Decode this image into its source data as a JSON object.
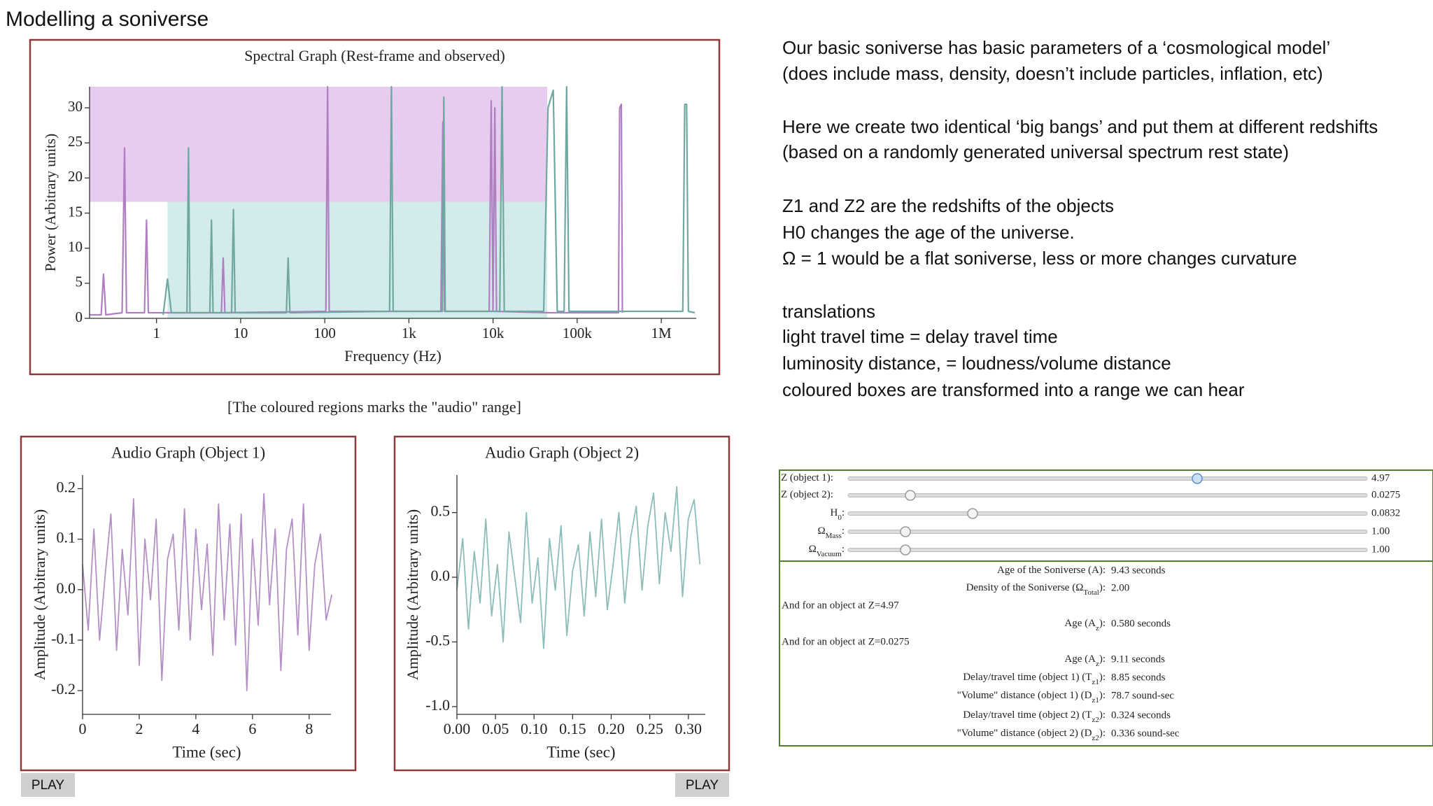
{
  "title": "Modelling a soniverse",
  "description": [
    "Our basic soniverse has basic parameters of a ‘cosmological model’",
    "(does include mass, density, doesn’t include particles, inflation, etc)",
    "Here we create two identical ‘big bangs’ and put them at different redshifts",
    "(based on a randomly generated universal spectrum rest state)",
    "Z1 and Z2 are the redshifts of the objects",
    "H0 changes the age of the universe.",
    "Ω = 1 would be a flat soniverse, less or more changes curvature",
    "translations",
    "light travel time = delay travel time",
    "luminosity distance, =  loudness/volume distance",
    "coloured boxes are transformed into a range we can hear"
  ],
  "spectral_chart": {
    "type": "line",
    "title": "Spectral Graph (Rest-frame and observed)",
    "x_label": "Frequency (Hz)",
    "y_label": "Power (Arbitrary units)",
    "xscale": "log",
    "xlim": [
      0.16,
      2600000
    ],
    "ylim": [
      0,
      33
    ],
    "xticks": [
      1,
      10,
      100,
      {
        "value": 1000,
        "label": "1k"
      },
      {
        "value": 10000,
        "label": "10k"
      },
      {
        "value": 100000,
        "label": "100k"
      },
      {
        "value": 1000000,
        "label": "1M"
      }
    ],
    "yticks": [
      0,
      5,
      10,
      15,
      20,
      25,
      30
    ],
    "regions": [
      {
        "color": "#e6cdef",
        "xlim": [
          0.16,
          44000
        ],
        "ylim": [
          16.6,
          33
        ]
      },
      {
        "color": "#d3ebea",
        "xlim": [
          1.35,
          44000
        ],
        "ylim": [
          0,
          16.6
        ]
      }
    ],
    "series": [
      {
        "color": "#b07fc2",
        "x": [
          0.16,
          0.22,
          0.234,
          0.25,
          0.39,
          0.417,
          0.44,
          0.72,
          0.76,
          0.8,
          5.9,
          6.2,
          6.5,
          103,
          108,
          113,
          2400,
          2530,
          2650,
          9000,
          9500,
          10000,
          10500,
          11000,
          44000,
          310000,
          320000,
          335000,
          345000
        ],
        "values": [
          0.5,
          0.5,
          6.3,
          0.5,
          0.8,
          24.3,
          0.8,
          0.8,
          14,
          0.8,
          0.8,
          8.6,
          0.8,
          1,
          33,
          1,
          1,
          28,
          1,
          1,
          31,
          1,
          30,
          1,
          0.8,
          0.8,
          30,
          30.5,
          0.8
        ]
      },
      {
        "color": "#6fa8a0",
        "x": [
          1.2,
          1.35,
          1.5,
          2.3,
          2.4,
          2.5,
          4.3,
          4.5,
          4.7,
          7.8,
          8.2,
          8.6,
          35,
          36.7,
          38.5,
          590,
          620,
          650,
          2500,
          2600,
          2700,
          12000,
          12800,
          13600,
          40000,
          45000,
          52000,
          58000,
          70000,
          75000,
          80000,
          1800000,
          1900000,
          2000000,
          2100000,
          2500000
        ],
        "values": [
          0.5,
          5.6,
          0.8,
          0.8,
          24.3,
          0.8,
          0.8,
          14,
          0.8,
          0.8,
          15.5,
          0.8,
          0.8,
          8.6,
          0.8,
          1,
          33,
          1,
          1,
          31.5,
          1,
          1,
          33,
          1,
          1,
          30,
          32.5,
          1,
          1,
          33,
          1,
          1,
          30.5,
          30.5,
          1,
          0.8
        ]
      }
    ]
  },
  "caption": "[The coloured regions marks the \"audio\" range]",
  "audio_charts": [
    {
      "type": "line",
      "title": "Audio Graph (Object 1)",
      "x_label": "Time (sec)",
      "y_label": "Amplitude (Arbitrary units)",
      "color": "#b48fc6",
      "xlim": [
        0,
        8.77
      ],
      "ylim": [
        -0.247,
        0.227
      ],
      "xticks": [
        0,
        2,
        4,
        6,
        8
      ],
      "yticks": [
        0.2,
        0.1,
        {
          "value": 0,
          "label": "0.0"
        },
        -0.1,
        -0.2
      ],
      "x": [
        0,
        0.2,
        0.4,
        0.6,
        0.8,
        1,
        1.2,
        1.4,
        1.6,
        1.8,
        2,
        2.2,
        2.4,
        2.6,
        2.8,
        3,
        3.2,
        3.4,
        3.6,
        3.8,
        4,
        4.2,
        4.4,
        4.6,
        4.8,
        5,
        5.2,
        5.4,
        5.6,
        5.8,
        6,
        6.2,
        6.4,
        6.6,
        6.8,
        7,
        7.2,
        7.4,
        7.6,
        7.8,
        8,
        8.2,
        8.4,
        8.6,
        8.8
      ],
      "values": [
        0.05,
        -0.08,
        0.12,
        -0.1,
        0.03,
        0.15,
        -0.12,
        0.08,
        -0.05,
        0.18,
        -0.15,
        0.1,
        -0.02,
        0.14,
        -0.18,
        0.06,
        0.11,
        -0.08,
        0.16,
        -0.1,
        0.12,
        -0.04,
        0.09,
        -0.13,
        0.17,
        -0.06,
        0.13,
        -0.11,
        0.15,
        -0.2,
        0.1,
        -0.07,
        0.19,
        -0.03,
        0.12,
        -0.16,
        0.08,
        0.14,
        -0.09,
        0.17,
        -0.12,
        0.05,
        0.11,
        -0.06,
        -0.01
      ]
    },
    {
      "type": "line",
      "title": "Audio Graph (Object 2)",
      "x_label": "Time (sec)",
      "y_label": "Amplitude (Arbitrary units)",
      "color": "#8dbdb9",
      "xlim": [
        0,
        0.322
      ],
      "ylim": [
        -1.06,
        0.79
      ],
      "xticks": [
        {
          "value": 0,
          "label": "0.00"
        },
        0.05,
        {
          "value": 0.1,
          "label": "0.10"
        },
        0.15,
        {
          "value": 0.2,
          "label": "0.20"
        },
        0.25,
        {
          "value": 0.3,
          "label": "0.30"
        }
      ],
      "yticks": [
        0.5,
        {
          "value": 0,
          "label": "0.0"
        },
        -0.5,
        {
          "value": -1,
          "label": "-1.0"
        }
      ],
      "x": [
        0,
        0.0075,
        0.015,
        0.0225,
        0.03,
        0.0375,
        0.045,
        0.0525,
        0.06,
        0.0675,
        0.075,
        0.0825,
        0.09,
        0.0975,
        0.105,
        0.1125,
        0.12,
        0.1275,
        0.135,
        0.1425,
        0.15,
        0.1575,
        0.165,
        0.1725,
        0.18,
        0.1875,
        0.195,
        0.2025,
        0.21,
        0.2175,
        0.225,
        0.2325,
        0.24,
        0.2475,
        0.255,
        0.2625,
        0.27,
        0.2775,
        0.285,
        0.2925,
        0.3,
        0.3075,
        0.315
      ],
      "values": [
        -0.1,
        0.3,
        -0.4,
        0.2,
        -0.2,
        0.45,
        -0.3,
        0.1,
        -0.5,
        0.35,
        0.0,
        -0.35,
        0.5,
        -0.2,
        0.15,
        -0.55,
        0.3,
        -0.1,
        0.4,
        -0.45,
        0.05,
        0.25,
        -0.3,
        0.35,
        -0.15,
        0.45,
        -0.25,
        0.1,
        0.5,
        -0.2,
        0.3,
        0.55,
        -0.1,
        0.4,
        0.65,
        -0.05,
        0.5,
        0.2,
        0.7,
        -0.15,
        0.45,
        0.6,
        0.1
      ]
    }
  ],
  "buttons": [
    "PLAY",
    "PLAY"
  ],
  "controls": [
    {
      "label": {
        "main": "Z (object 1):"
      },
      "value": "4.97"
    },
    {
      "label": {
        "main": "Z (object 2):"
      },
      "value": "0.0275"
    },
    {
      "label": {
        "main": "H",
        "sub": "0",
        "end": ":"
      },
      "value": "0.0832"
    },
    {
      "label": {
        "main": "Ω",
        "sub": "Mass",
        "end": ":"
      },
      "value": "1.00"
    },
    {
      "label": {
        "main": "Ω",
        "sub": "Vacuum",
        "end": ":"
      },
      "value": "1.00"
    }
  ],
  "results": [
    {
      "label": {
        "main": "Age of the Soniverse (A):"
      },
      "value": "9.43 seconds"
    },
    {
      "label": {
        "main": "Density of the Soniverse (Ω",
        "sub": "Total",
        "end": "):"
      },
      "value": "2.00"
    },
    {
      "heading": "And for an object at Z=4.97"
    },
    {
      "label": {
        "main": "Age (A",
        "sub": "z",
        "end": "):"
      },
      "value": "0.580 seconds"
    },
    {
      "heading": "And for an object at Z=0.0275"
    },
    {
      "label": {
        "main": "Age (A",
        "sub": "z",
        "end": "):"
      },
      "value": "9.11 seconds"
    },
    {
      "label": {
        "main": "Delay/travel time (object 1) (T",
        "sub": "z1",
        "end": "):"
      },
      "value": "8.85 seconds"
    },
    {
      "label": {
        "main": "\"Volume\" distance (object 1) (D",
        "sub": "z1",
        "end": "):"
      },
      "value": "78.7 sound-sec"
    },
    {
      "label": {
        "main": "Delay/travel time (object 2) (T",
        "sub": "z2",
        "end": "):"
      },
      "value": "0.324 seconds"
    },
    {
      "label": {
        "main": "\"Volume\" distance (object 2) (D",
        "sub": "z2",
        "end": "):"
      },
      "value": "0.336 sound-sec"
    }
  ]
}
